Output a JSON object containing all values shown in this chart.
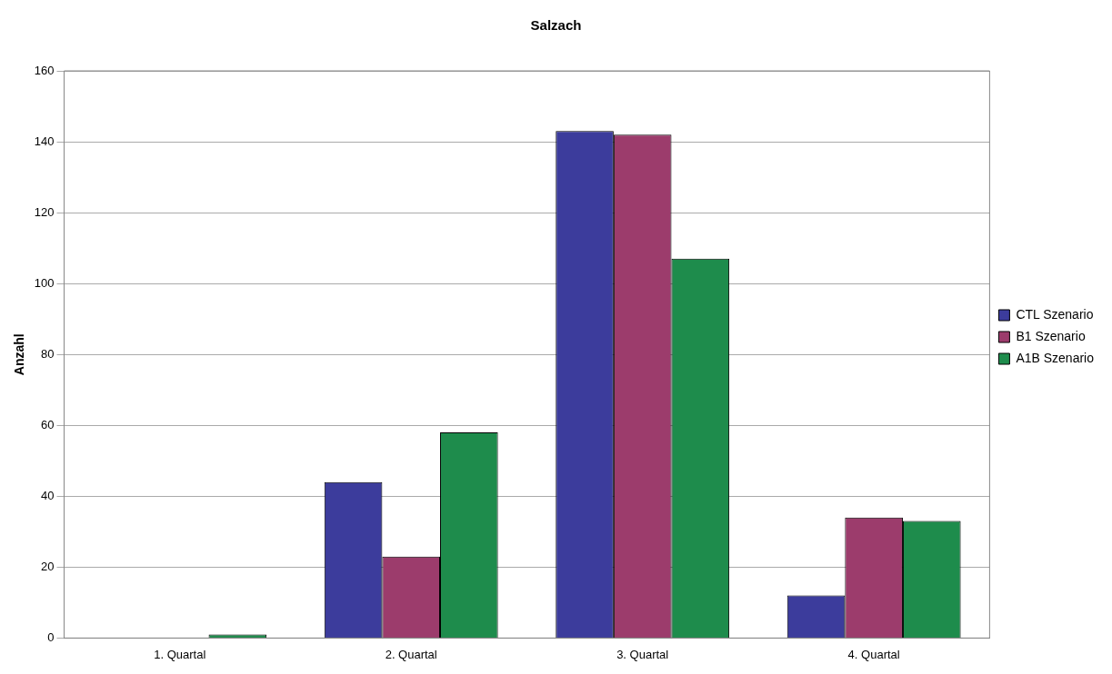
{
  "chart_data": {
    "type": "bar",
    "title": "Salzach",
    "ylabel": "Anzahl",
    "categories": [
      "1. Quartal",
      "2. Quartal",
      "3. Quartal",
      "4. Quartal"
    ],
    "series": [
      {
        "name": "CTL Szenario",
        "color": "#3c3c9c",
        "values": [
          0,
          44,
          143,
          12
        ]
      },
      {
        "name": "B1 Szenario",
        "color": "#9c3c6c",
        "values": [
          0,
          23,
          142,
          34
        ]
      },
      {
        "name": "A1B Szenario",
        "color": "#1e8c4c",
        "values": [
          1,
          58,
          107,
          33
        ]
      }
    ],
    "ylim": [
      0,
      160
    ],
    "yticks": [
      0,
      20,
      40,
      60,
      80,
      100,
      120,
      140,
      160
    ],
    "grid": "y",
    "legend": "right"
  }
}
